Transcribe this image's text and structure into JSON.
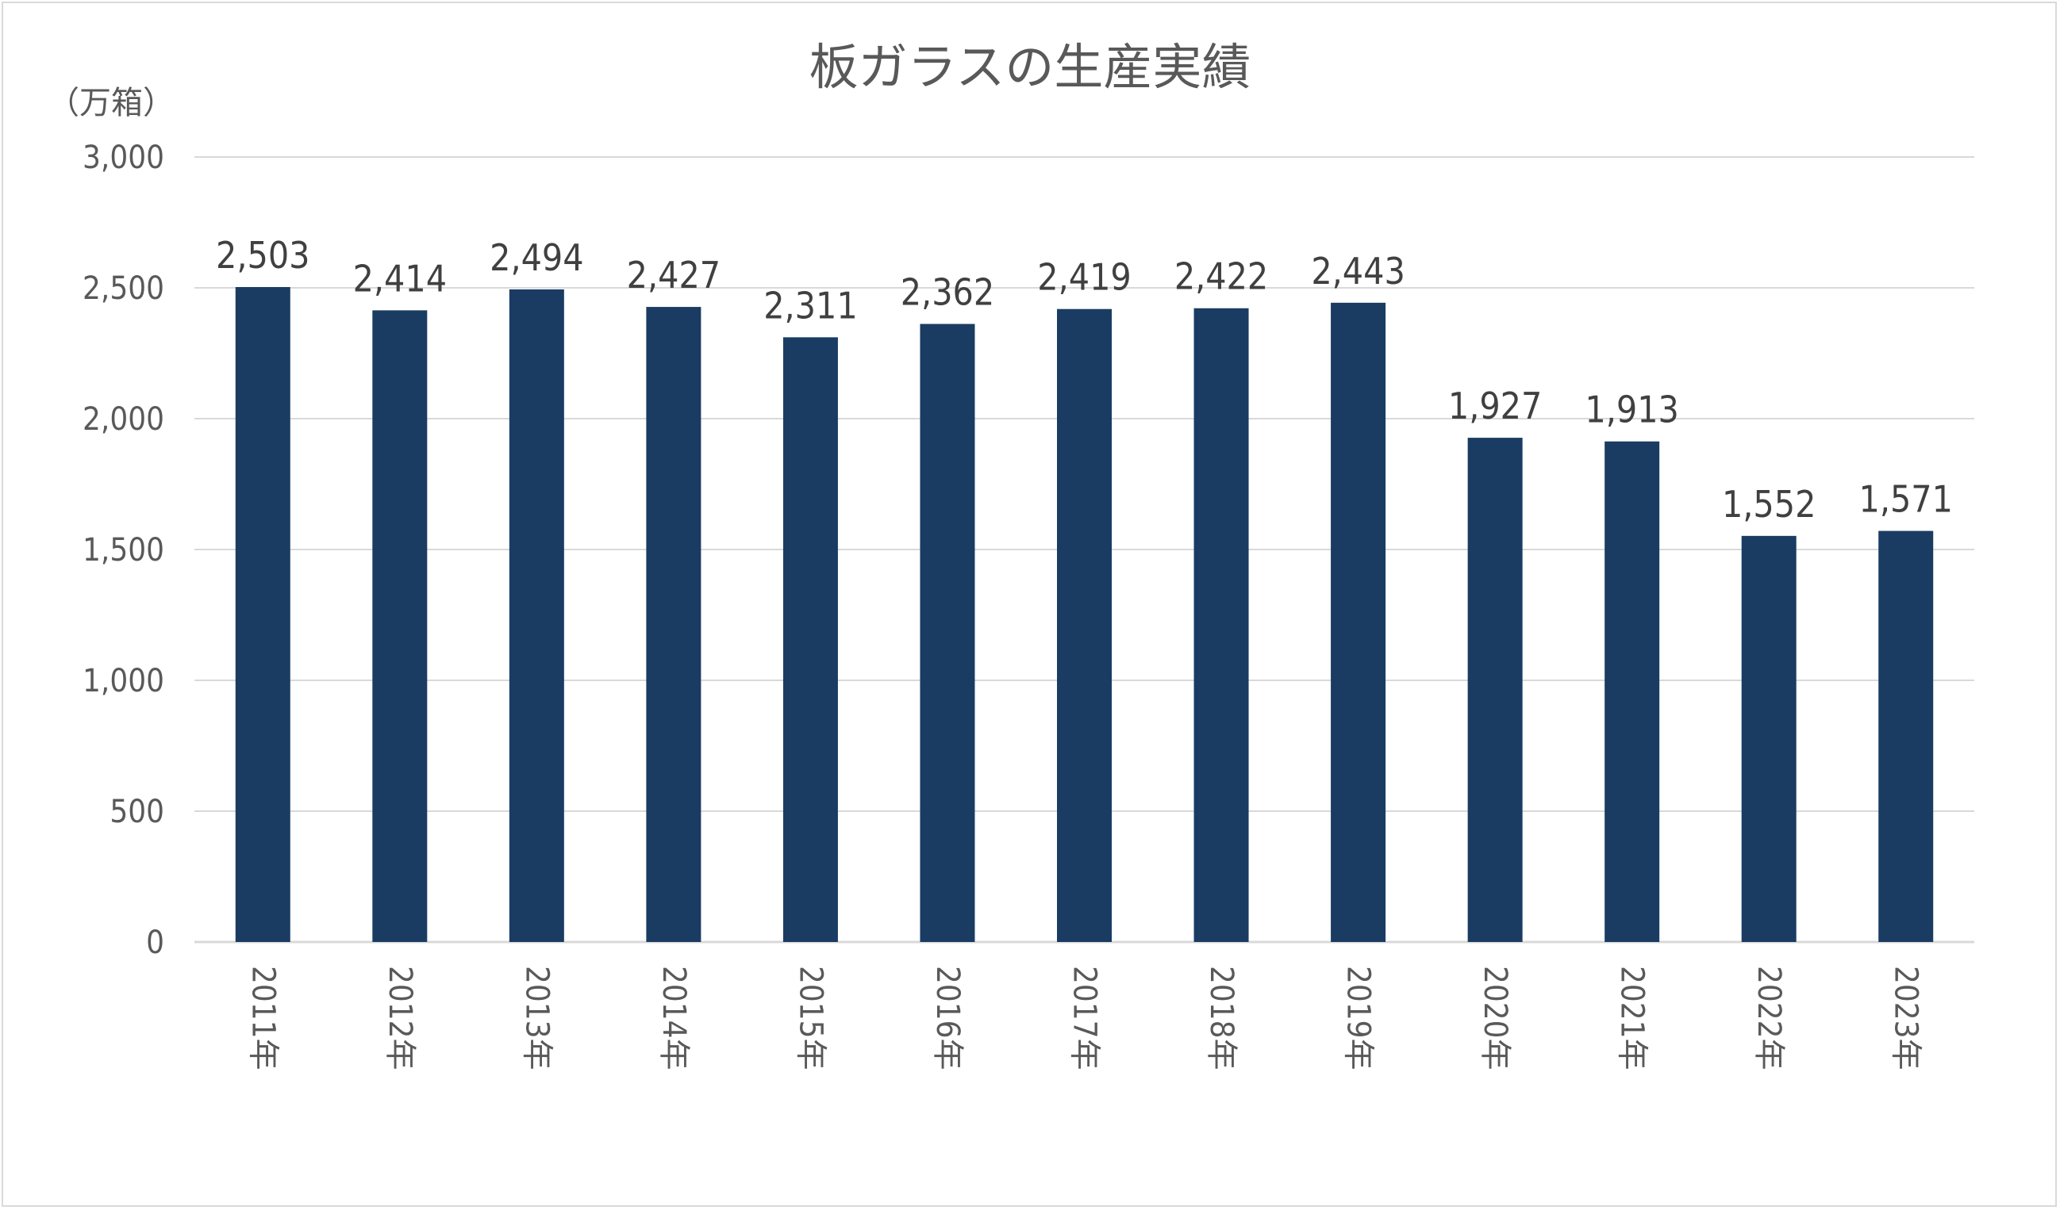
{
  "chart_data": {
    "type": "bar",
    "title": "板ガラスの生産実績",
    "unit_label": "（万箱）",
    "categories": [
      "2011年",
      "2012年",
      "2013年",
      "2014年",
      "2015年",
      "2016年",
      "2017年",
      "2018年",
      "2019年",
      "2020年",
      "2021年",
      "2022年",
      "2023年"
    ],
    "values": [
      2503,
      2414,
      2494,
      2427,
      2311,
      2362,
      2419,
      2422,
      2443,
      1927,
      1913,
      1552,
      1571
    ],
    "value_labels": [
      "2,503",
      "2,414",
      "2,494",
      "2,427",
      "2,311",
      "2,362",
      "2,419",
      "2,422",
      "2,443",
      "1,927",
      "1,913",
      "1,552",
      "1,571"
    ],
    "ylim": [
      0,
      3000
    ],
    "yticks": [
      0,
      500,
      1000,
      1500,
      2000,
      2500,
      3000
    ],
    "ytick_labels": [
      "0",
      "500",
      "1,000",
      "1,500",
      "2,000",
      "2,500",
      "3,000"
    ],
    "grid": true,
    "bar_color": "#1a3c63",
    "xlabel": "",
    "ylabel": ""
  }
}
